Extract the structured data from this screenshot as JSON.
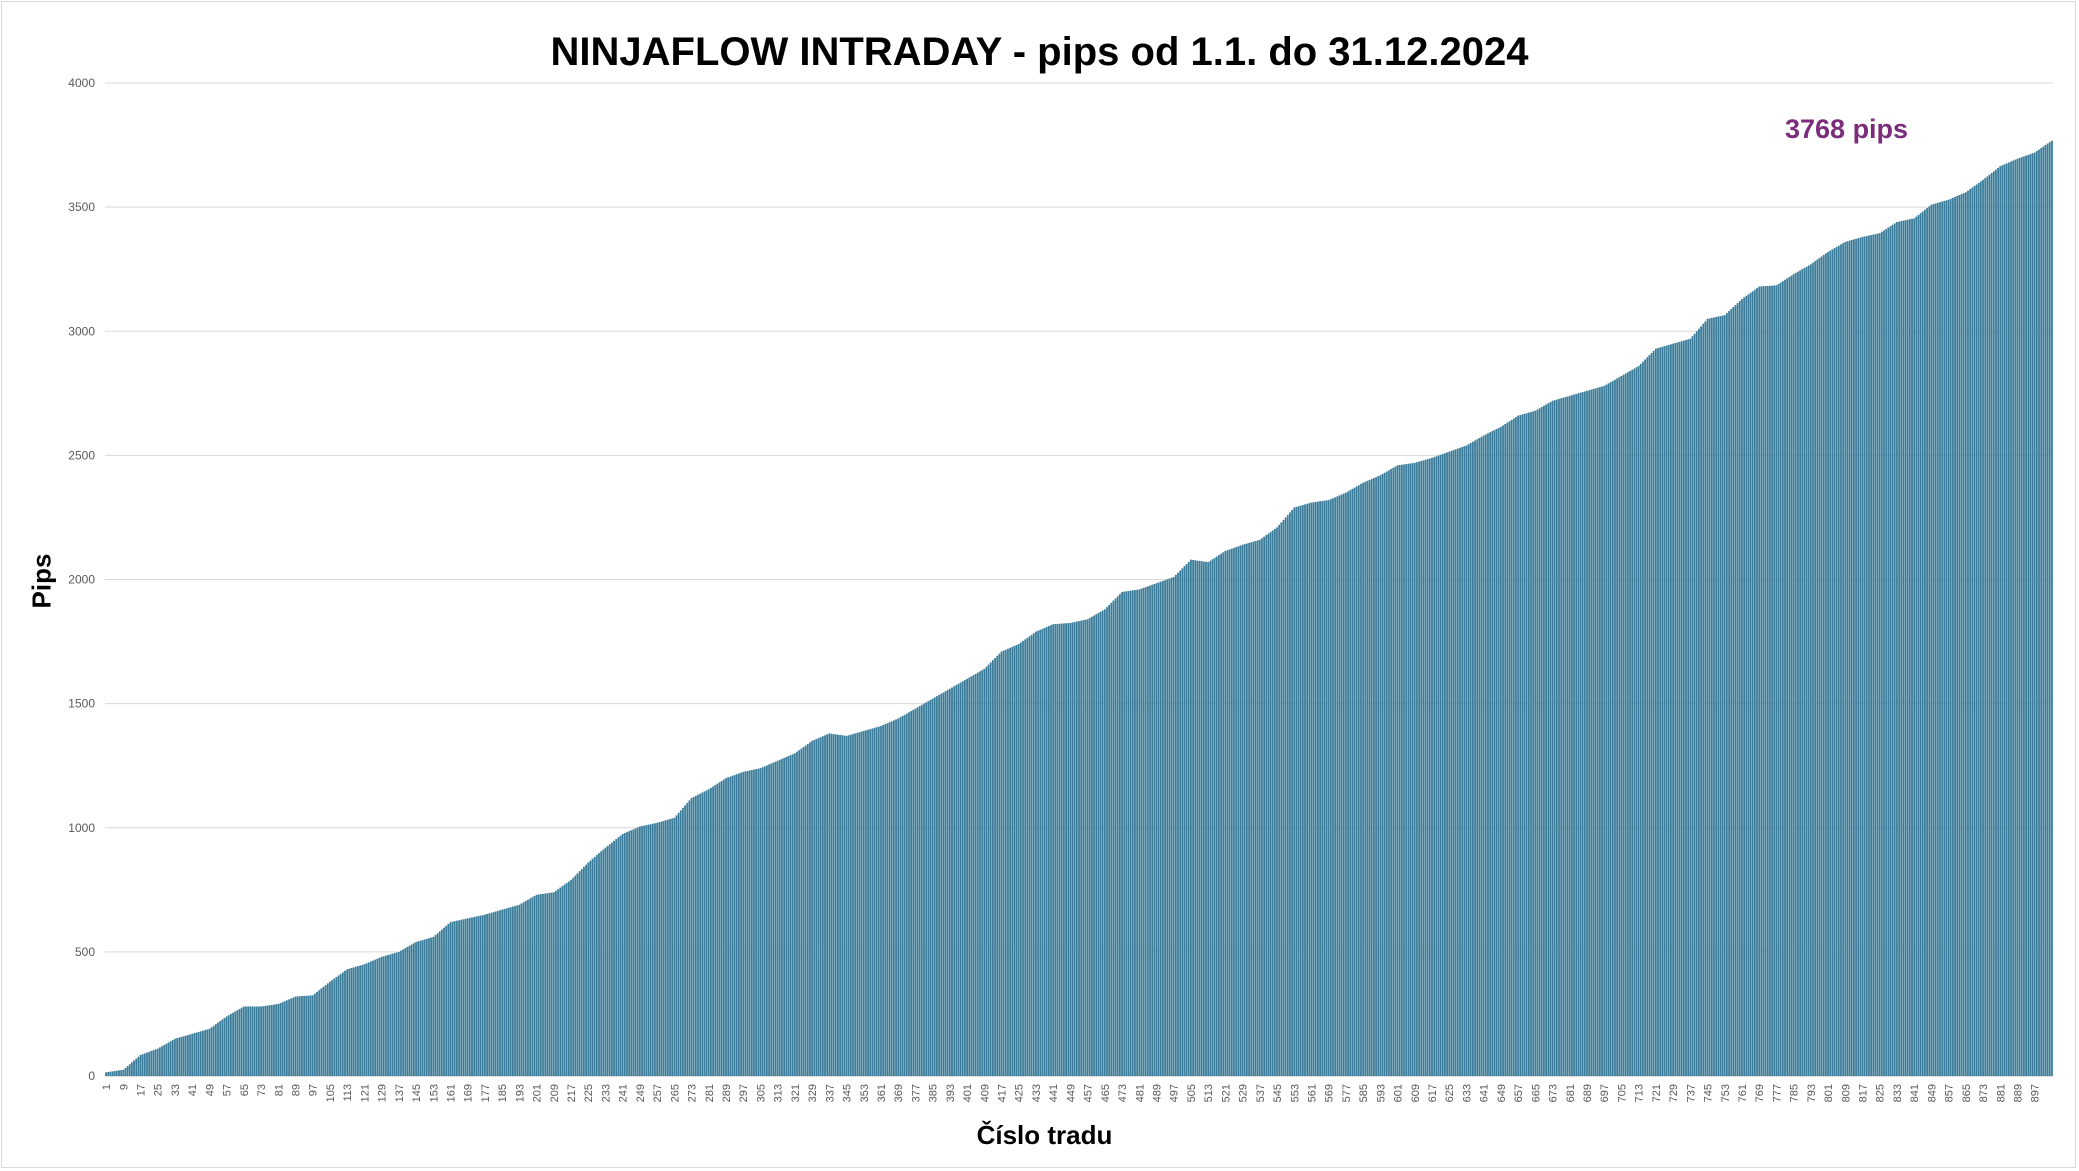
{
  "chart_data": {
    "type": "bar",
    "title": "NINJAFLOW INTRADAY - pips od 1.1. do 31.12.2024",
    "xlabel": "Číslo tradu",
    "ylabel": "Pips",
    "ylim": [
      0,
      4000
    ],
    "yticks": [
      0,
      500,
      1000,
      1500,
      2000,
      2500,
      3000,
      3500,
      4000
    ],
    "x_tick_labels": [
      "1",
      "9",
      "17",
      "25",
      "33",
      "41",
      "49",
      "57",
      "65",
      "73",
      "81",
      "89",
      "97",
      "105",
      "113",
      "121",
      "129",
      "137",
      "145",
      "153",
      "161",
      "169",
      "177",
      "185",
      "193",
      "201",
      "209",
      "217",
      "225",
      "233",
      "241",
      "249",
      "257",
      "265",
      "273",
      "281",
      "289",
      "297",
      "305",
      "313",
      "321",
      "329",
      "337",
      "345",
      "353",
      "361",
      "369",
      "377",
      "385",
      "393",
      "401",
      "409",
      "417",
      "425",
      "433",
      "441",
      "449",
      "457",
      "465",
      "473",
      "481",
      "489",
      "497",
      "505",
      "513",
      "521",
      "529",
      "537",
      "545",
      "553",
      "561",
      "569",
      "577",
      "585",
      "593",
      "601",
      "609",
      "617",
      "625",
      "633",
      "641",
      "649",
      "657",
      "665",
      "673",
      "681",
      "689",
      "697",
      "705",
      "713",
      "721",
      "729",
      "737",
      "745",
      "753",
      "761",
      "769",
      "777",
      "785",
      "793",
      "801",
      "809",
      "817",
      "825",
      "833",
      "841",
      "849",
      "857",
      "865",
      "873",
      "881",
      "889",
      "897"
    ],
    "series": [
      {
        "color": "#3a7c99",
        "points": [
          [
            1,
            15
          ],
          [
            9,
            25
          ],
          [
            17,
            85
          ],
          [
            25,
            110
          ],
          [
            33,
            150
          ],
          [
            41,
            170
          ],
          [
            49,
            190
          ],
          [
            57,
            240
          ],
          [
            65,
            280
          ],
          [
            73,
            280
          ],
          [
            81,
            290
          ],
          [
            89,
            320
          ],
          [
            97,
            325
          ],
          [
            105,
            380
          ],
          [
            113,
            430
          ],
          [
            121,
            450
          ],
          [
            129,
            480
          ],
          [
            137,
            500
          ],
          [
            145,
            540
          ],
          [
            153,
            560
          ],
          [
            161,
            620
          ],
          [
            169,
            635
          ],
          [
            177,
            650
          ],
          [
            185,
            670
          ],
          [
            193,
            690
          ],
          [
            201,
            730
          ],
          [
            209,
            740
          ],
          [
            217,
            790
          ],
          [
            225,
            860
          ],
          [
            233,
            920
          ],
          [
            241,
            975
          ],
          [
            249,
            1005
          ],
          [
            257,
            1020
          ],
          [
            265,
            1040
          ],
          [
            273,
            1120
          ],
          [
            281,
            1155
          ],
          [
            289,
            1200
          ],
          [
            297,
            1225
          ],
          [
            305,
            1240
          ],
          [
            313,
            1270
          ],
          [
            321,
            1300
          ],
          [
            329,
            1350
          ],
          [
            337,
            1380
          ],
          [
            345,
            1370
          ],
          [
            353,
            1390
          ],
          [
            361,
            1410
          ],
          [
            369,
            1440
          ],
          [
            377,
            1480
          ],
          [
            385,
            1520
          ],
          [
            393,
            1560
          ],
          [
            401,
            1600
          ],
          [
            409,
            1640
          ],
          [
            417,
            1710
          ],
          [
            425,
            1740
          ],
          [
            433,
            1790
          ],
          [
            441,
            1820
          ],
          [
            449,
            1825
          ],
          [
            457,
            1840
          ],
          [
            465,
            1880
          ],
          [
            473,
            1950
          ],
          [
            481,
            1960
          ],
          [
            489,
            1985
          ],
          [
            497,
            2010
          ],
          [
            505,
            2080
          ],
          [
            513,
            2070
          ],
          [
            521,
            2115
          ],
          [
            529,
            2140
          ],
          [
            537,
            2160
          ],
          [
            545,
            2210
          ],
          [
            553,
            2290
          ],
          [
            561,
            2310
          ],
          [
            569,
            2320
          ],
          [
            577,
            2350
          ],
          [
            585,
            2390
          ],
          [
            593,
            2420
          ],
          [
            601,
            2460
          ],
          [
            609,
            2470
          ],
          [
            617,
            2490
          ],
          [
            625,
            2515
          ],
          [
            633,
            2540
          ],
          [
            641,
            2580
          ],
          [
            649,
            2615
          ],
          [
            657,
            2660
          ],
          [
            665,
            2680
          ],
          [
            673,
            2720
          ],
          [
            681,
            2740
          ],
          [
            689,
            2760
          ],
          [
            697,
            2780
          ],
          [
            705,
            2820
          ],
          [
            713,
            2860
          ],
          [
            721,
            2930
          ],
          [
            729,
            2950
          ],
          [
            737,
            2970
          ],
          [
            745,
            3050
          ],
          [
            753,
            3065
          ],
          [
            761,
            3130
          ],
          [
            769,
            3180
          ],
          [
            777,
            3185
          ],
          [
            785,
            3230
          ],
          [
            793,
            3270
          ],
          [
            801,
            3320
          ],
          [
            809,
            3360
          ],
          [
            817,
            3380
          ],
          [
            825,
            3395
          ],
          [
            833,
            3440
          ],
          [
            841,
            3455
          ],
          [
            849,
            3510
          ],
          [
            857,
            3530
          ],
          [
            865,
            3560
          ],
          [
            873,
            3610
          ],
          [
            881,
            3665
          ],
          [
            889,
            3695
          ],
          [
            897,
            3720
          ],
          [
            905,
            3768
          ]
        ]
      }
    ],
    "annotation": "3768 pips",
    "grid": true
  }
}
